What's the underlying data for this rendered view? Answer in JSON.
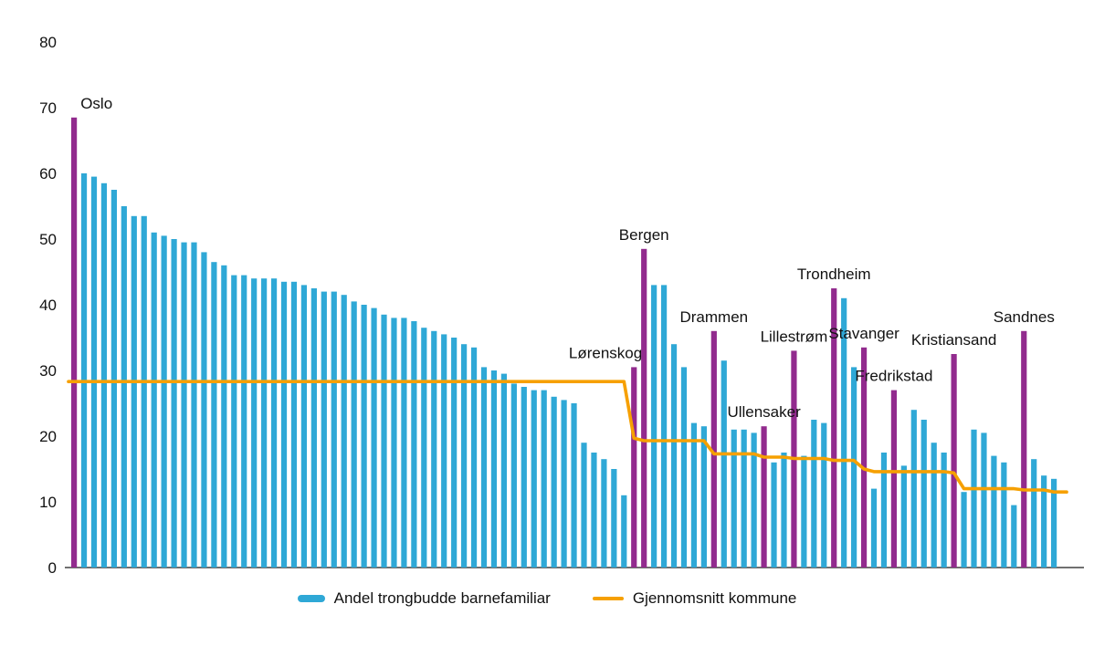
{
  "chart_data": {
    "type": "bar",
    "title": "",
    "xlabel": "",
    "ylabel": "",
    "ylim": [
      0,
      80
    ],
    "yticks": [
      0,
      10,
      20,
      30,
      40,
      50,
      60,
      70,
      80
    ],
    "grid": false,
    "legend_position": "bottom",
    "colors": {
      "bar": "#2FA8D6",
      "highlight_bar": "#922B8E",
      "average_line": "#F6A000",
      "axis": "#1A1A1A"
    },
    "legend": [
      {
        "label": "Andel trongbudde barnefamiliar",
        "type": "bar",
        "color": "#2FA8D6"
      },
      {
        "label": "Gjennomsnitt kommune",
        "type": "line",
        "color": "#F6A000"
      }
    ],
    "bars": [
      {
        "value": 68.5,
        "label": "Oslo",
        "highlight": true
      },
      {
        "value": 60
      },
      {
        "value": 59.5
      },
      {
        "value": 58.5
      },
      {
        "value": 57.5
      },
      {
        "value": 55
      },
      {
        "value": 53.5
      },
      {
        "value": 53.5
      },
      {
        "value": 51
      },
      {
        "value": 50.5
      },
      {
        "value": 50
      },
      {
        "value": 49.5
      },
      {
        "value": 49.5
      },
      {
        "value": 48
      },
      {
        "value": 46.5
      },
      {
        "value": 46
      },
      {
        "value": 44.5
      },
      {
        "value": 44.5
      },
      {
        "value": 44
      },
      {
        "value": 44
      },
      {
        "value": 44
      },
      {
        "value": 43.5
      },
      {
        "value": 43.5
      },
      {
        "value": 43
      },
      {
        "value": 42.5
      },
      {
        "value": 42
      },
      {
        "value": 42
      },
      {
        "value": 41.5
      },
      {
        "value": 40.5
      },
      {
        "value": 40
      },
      {
        "value": 39.5
      },
      {
        "value": 38.5
      },
      {
        "value": 38
      },
      {
        "value": 38
      },
      {
        "value": 37.5
      },
      {
        "value": 36.5
      },
      {
        "value": 36
      },
      {
        "value": 35.5
      },
      {
        "value": 35
      },
      {
        "value": 34
      },
      {
        "value": 33.5
      },
      {
        "value": 30.5
      },
      {
        "value": 30
      },
      {
        "value": 29.5
      },
      {
        "value": 28
      },
      {
        "value": 27.5
      },
      {
        "value": 27
      },
      {
        "value": 27
      },
      {
        "value": 26
      },
      {
        "value": 25.5
      },
      {
        "value": 25
      },
      {
        "value": 19
      },
      {
        "value": 17.5
      },
      {
        "value": 16.5
      },
      {
        "value": 15
      },
      {
        "value": 11
      },
      {
        "value": 30.5,
        "label": "Lørenskog",
        "highlight": true
      },
      {
        "value": 48.5,
        "label": "Bergen",
        "highlight": true
      },
      {
        "value": 43
      },
      {
        "value": 43
      },
      {
        "value": 34
      },
      {
        "value": 30.5
      },
      {
        "value": 22
      },
      {
        "value": 21.5
      },
      {
        "value": 36,
        "label": "Drammen",
        "highlight": true
      },
      {
        "value": 31.5
      },
      {
        "value": 21
      },
      {
        "value": 21
      },
      {
        "value": 20.5
      },
      {
        "value": 21.5,
        "label": "Ullensaker",
        "highlight": true
      },
      {
        "value": 16
      },
      {
        "value": 17.5
      },
      {
        "value": 33,
        "label": "Lillestrøm",
        "highlight": true
      },
      {
        "value": 17
      },
      {
        "value": 22.5
      },
      {
        "value": 22
      },
      {
        "value": 42.5,
        "label": "Trondheim",
        "highlight": true
      },
      {
        "value": 41
      },
      {
        "value": 30.5
      },
      {
        "value": 33.5,
        "label": "Stavanger",
        "highlight": true
      },
      {
        "value": 12
      },
      {
        "value": 17.5
      },
      {
        "value": 27,
        "label": "Fredrikstad",
        "highlight": true
      },
      {
        "value": 15.5
      },
      {
        "value": 24
      },
      {
        "value": 22.5
      },
      {
        "value": 19
      },
      {
        "value": 17.5
      },
      {
        "value": 32.5,
        "label": "Kristiansand",
        "highlight": true
      },
      {
        "value": 11.5
      },
      {
        "value": 21
      },
      {
        "value": 20.5
      },
      {
        "value": 17
      },
      {
        "value": 16
      },
      {
        "value": 9.5
      },
      {
        "value": 36,
        "label": "Sandnes",
        "highlight": true
      },
      {
        "value": 16.5
      },
      {
        "value": 14
      },
      {
        "value": 13.5
      }
    ],
    "average": [
      28.3,
      28.3,
      28.3,
      28.3,
      28.3,
      28.3,
      28.3,
      28.3,
      28.3,
      28.3,
      28.3,
      28.3,
      28.3,
      28.3,
      28.3,
      28.3,
      28.3,
      28.3,
      28.3,
      28.3,
      28.3,
      28.3,
      28.3,
      28.3,
      28.3,
      28.3,
      28.3,
      28.3,
      28.3,
      28.3,
      28.3,
      28.3,
      28.3,
      28.3,
      28.3,
      28.3,
      28.3,
      28.3,
      28.3,
      28.3,
      28.3,
      28.3,
      28.3,
      28.3,
      28.3,
      28.3,
      28.3,
      28.3,
      28.3,
      28.3,
      28.3,
      28.3,
      28.3,
      28.3,
      28.3,
      28.3,
      19.7,
      19.3,
      19.3,
      19.3,
      19.3,
      19.3,
      19.3,
      19.3,
      17.3,
      17.3,
      17.3,
      17.3,
      17.3,
      16.8,
      16.8,
      16.8,
      16.6,
      16.6,
      16.6,
      16.6,
      16.3,
      16.3,
      16.3,
      15.0,
      14.6,
      14.6,
      14.6,
      14.6,
      14.6,
      14.6,
      14.6,
      14.6,
      14.4,
      12.0,
      12.0,
      12.0,
      12.0,
      12.0,
      12.0,
      11.8,
      11.8,
      11.8,
      11.5
    ]
  }
}
